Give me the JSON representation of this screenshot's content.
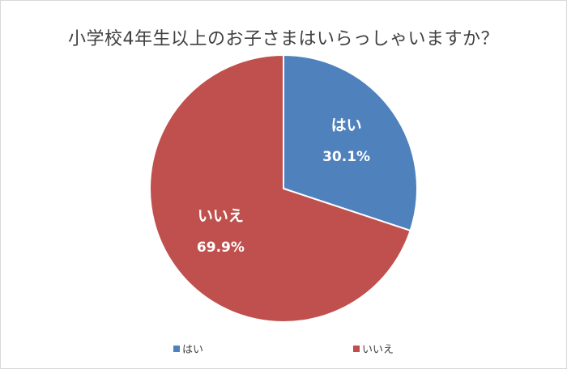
{
  "chart_data": {
    "type": "pie",
    "title": "小学校4年生以上のお子さまはいらっしゃいますか？",
    "categories": [
      "はい",
      "いいえ"
    ],
    "values": [
      30.1,
      69.9
    ],
    "value_labels": [
      "30.1%",
      "69.9%"
    ],
    "colors": [
      "#4f81bd",
      "#c0504d"
    ],
    "legend": "bottom",
    "data_label_color": "#ffffff",
    "slice_border_color": "#ffffff"
  }
}
